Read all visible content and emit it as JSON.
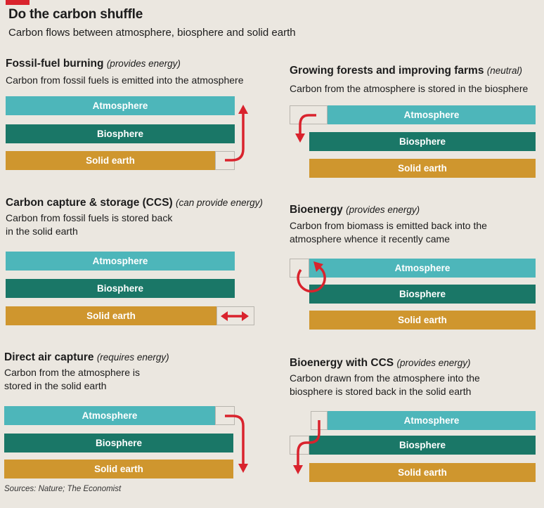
{
  "header": {
    "title": "Do the carbon shuffle",
    "subtitle": "Carbon flows between atmosphere, biosphere and solid earth"
  },
  "bars": {
    "atmosphere": "Atmosphere",
    "biosphere": "Biosphere",
    "solid_earth": "Solid earth"
  },
  "panels": [
    {
      "title": "Fossil-fuel burning",
      "note": "(provides energy)",
      "desc": [
        "Carbon from fossil fuels is emitted into the atmosphere"
      ]
    },
    {
      "title": "Growing forests and improving farms",
      "note": "(neutral)",
      "desc": [
        "Carbon from the atmosphere is stored in the biosphere"
      ]
    },
    {
      "title": "Carbon capture & storage (CCS)",
      "note": "(can provide energy)",
      "desc": [
        "Carbon from fossil fuels is stored back",
        "in the solid earth"
      ]
    },
    {
      "title": "Bioenergy",
      "note": "(provides energy)",
      "desc": [
        "Carbon from biomass is emitted back into the",
        "atmosphere whence it recently came"
      ]
    },
    {
      "title": "Direct air capture",
      "note": "(requires energy)",
      "desc": [
        "Carbon from the atmosphere is",
        "stored in the solid earth"
      ]
    },
    {
      "title": "Bioenergy with CCS",
      "note": "(provides energy)",
      "desc": [
        "Carbon drawn from the atmosphere into the",
        "biosphere is stored back in the solid earth"
      ]
    }
  ],
  "footer": {
    "sources": "Sources: Nature; The Economist"
  },
  "colors": {
    "atmosphere": "#4db6ba",
    "biosphere": "#1a7767",
    "solid_earth": "#cf962e",
    "arrow": "#d9232d"
  }
}
